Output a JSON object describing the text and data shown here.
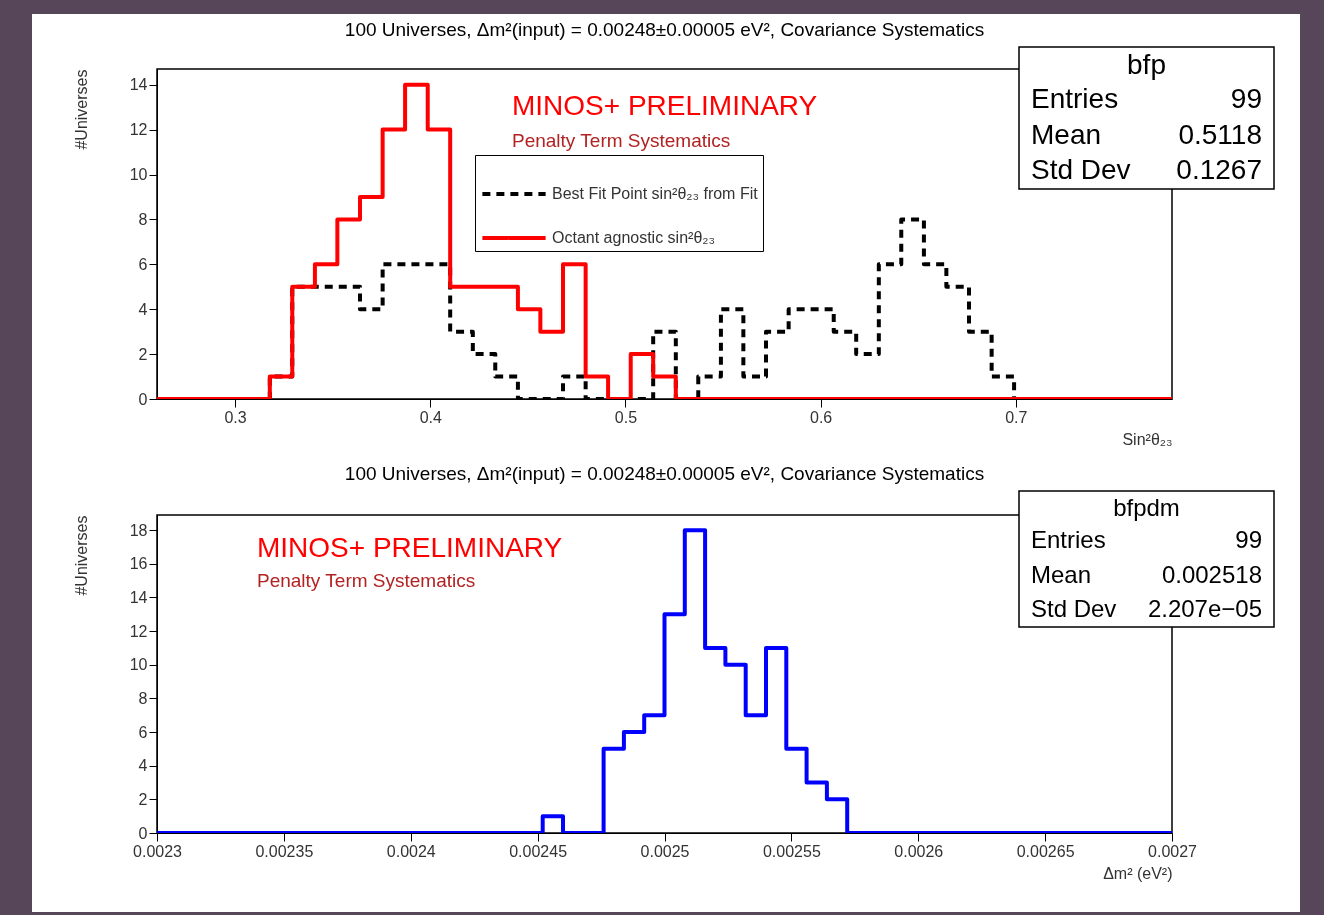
{
  "chart_data": [
    {
      "type": "histogram",
      "title": "100 Universes, Δm²(input) = 0.00248±0.00005 eV², Covariance Systematics",
      "xlabel": "Sin²θ₂₃",
      "ylabel": "#Universes",
      "bins": [
        0.26,
        0.2716,
        0.2831,
        0.2947,
        0.3062,
        0.3178,
        0.3293,
        0.3409,
        0.3524,
        0.364,
        0.3756,
        0.3871,
        0.3987,
        0.4102,
        0.4218,
        0.4333,
        0.4449,
        0.4564,
        0.468,
        0.4796,
        0.4911,
        0.5027,
        0.5142,
        0.5258,
        0.5373,
        0.5489,
        0.5604,
        0.572,
        0.5836,
        0.5951,
        0.6067,
        0.6182,
        0.6298,
        0.6413,
        0.6529,
        0.6644,
        0.676,
        0.6876,
        0.6991,
        0.7107,
        0.7222,
        0.7338,
        0.7453,
        0.7569,
        0.7684,
        0.78
      ],
      "series": [
        {
          "name": "Best Fit Point sin²θ₂₃ from Fit",
          "color": "#000000",
          "line_style": "dashed",
          "values": [
            0,
            0,
            0,
            0,
            0,
            1,
            5,
            5,
            5,
            4,
            6,
            6,
            6,
            3,
            2,
            1,
            0,
            0,
            1,
            0,
            0,
            0,
            3,
            0,
            1,
            4,
            1,
            3,
            4,
            4,
            3,
            2,
            6,
            8,
            6,
            5,
            3,
            1,
            0,
            0,
            0,
            0,
            0,
            0,
            0
          ]
        },
        {
          "name": "Octant agnostic sin²θ₂₃",
          "color": "#ff0000",
          "line_style": "solid",
          "values": [
            0,
            0,
            0,
            0,
            0,
            1,
            5,
            6,
            8,
            9,
            12,
            14,
            12,
            5,
            5,
            5,
            4,
            3,
            6,
            1,
            0,
            2,
            1,
            0,
            0,
            0,
            0,
            0,
            0,
            0,
            0,
            0,
            0,
            0,
            0,
            0,
            0,
            0,
            0,
            0,
            0,
            0,
            0,
            0,
            0
          ]
        }
      ],
      "xlim": [
        0.26,
        0.78
      ],
      "xticks": [
        0.3,
        0.4,
        0.5,
        0.6,
        0.7
      ],
      "ylim": [
        0,
        14.7
      ],
      "yticks": [
        0,
        2,
        4,
        6,
        8,
        10,
        12,
        14
      ],
      "legend": "top",
      "annotations": [
        "MINOS+ PRELIMINARY",
        "Penalty Term Systematics",
        "bfp",
        "Entries",
        "99",
        "Mean",
        "0.5118",
        "Std Dev",
        "0.1267"
      ]
    },
    {
      "type": "histogram",
      "title": "100 Universes, Δm²(input) = 0.00248±0.00005 eV², Covariance Systematics",
      "xlabel": "Δm² (eV²)",
      "ylabel": "#Universes",
      "bins": [
        0.0023,
        0.002308,
        0.002316,
        0.002324,
        0.002332,
        0.00234,
        0.002348,
        0.002356,
        0.002364,
        0.002372,
        0.00238,
        0.002388,
        0.002396,
        0.002404,
        0.002412,
        0.00242,
        0.002428,
        0.002436,
        0.002444,
        0.002452,
        0.00246,
        0.002468,
        0.002476,
        0.002484,
        0.002492,
        0.0025,
        0.002508,
        0.002516,
        0.002524,
        0.002532,
        0.00254,
        0.002548,
        0.002556,
        0.002564,
        0.002572,
        0.00258,
        0.002588,
        0.002596,
        0.002604,
        0.002612,
        0.00262,
        0.002628,
        0.002636,
        0.002644,
        0.002652,
        0.00266,
        0.002668,
        0.002676,
        0.002684,
        0.002692,
        0.0027
      ],
      "series": [
        {
          "color": "#0000ff",
          "values": [
            0,
            0,
            0,
            0,
            0,
            0,
            0,
            0,
            0,
            0,
            0,
            0,
            0,
            0,
            0,
            0,
            0,
            0,
            0,
            1,
            0,
            0,
            5,
            6,
            7,
            13,
            18,
            11,
            10,
            7,
            11,
            5,
            3,
            2,
            0,
            0,
            0,
            0,
            0,
            0,
            0,
            0,
            0,
            0,
            0,
            0,
            0,
            0,
            0,
            0
          ]
        }
      ],
      "xlim": [
        0.0023,
        0.0027
      ],
      "xticks": [
        0.0023,
        0.00235,
        0.0024,
        0.00245,
        0.0025,
        0.00255,
        0.0026,
        0.00265,
        0.0027
      ],
      "ylim": [
        0,
        18.9
      ],
      "yticks": [
        0,
        2,
        4,
        6,
        8,
        10,
        12,
        14,
        16,
        18
      ],
      "annotations": [
        "MINOS+ PRELIMINARY",
        "Penalty Term Systematics",
        "bfpdm",
        "Entries",
        "99",
        "Mean",
        "0.002518",
        "Std Dev",
        "2.207e−05"
      ]
    }
  ]
}
